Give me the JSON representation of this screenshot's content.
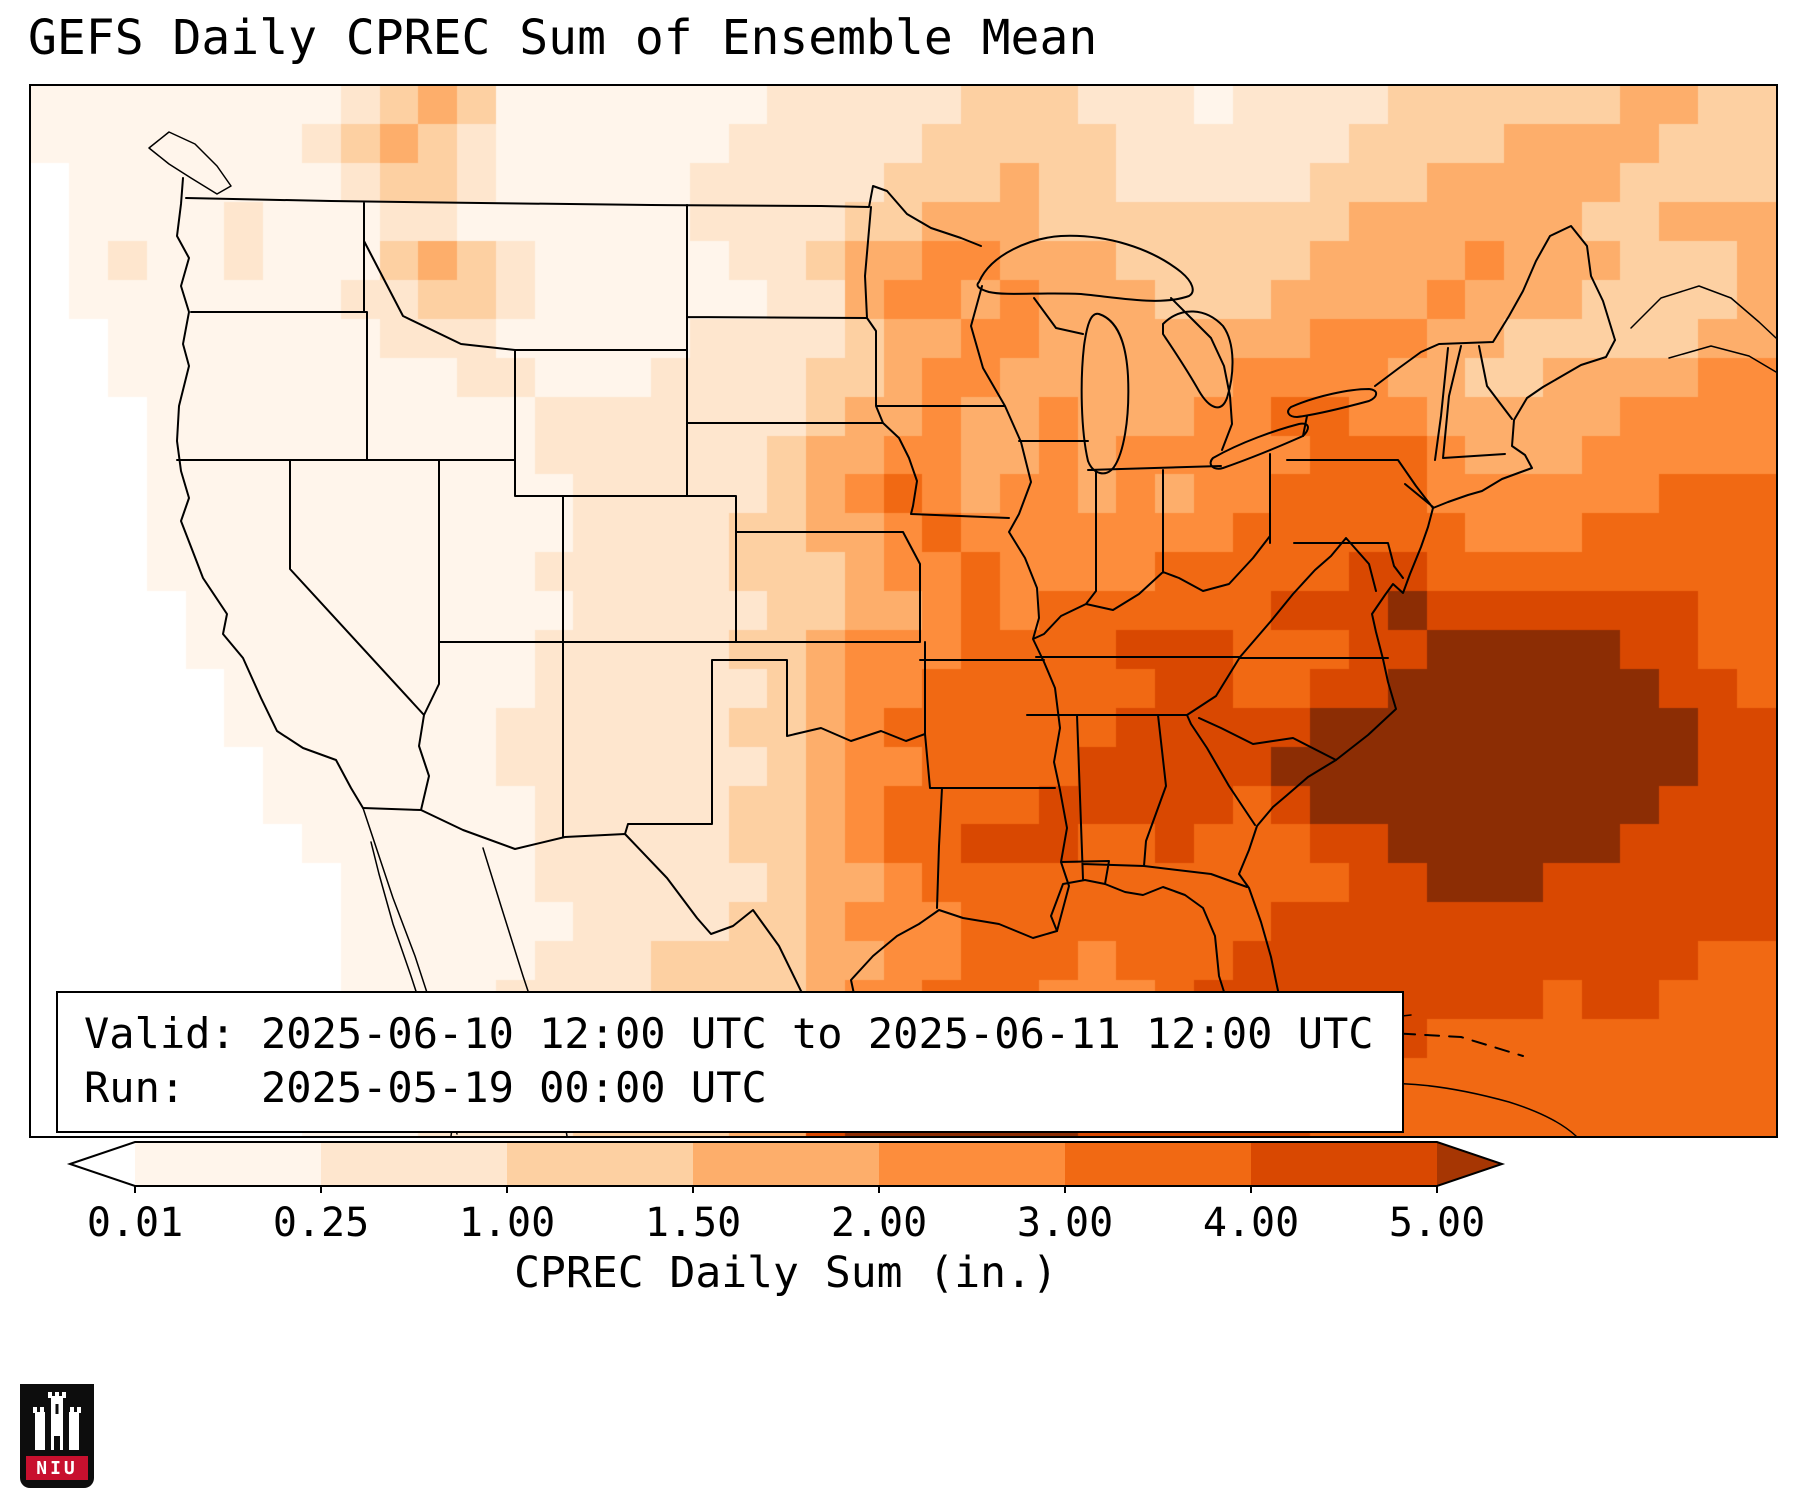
{
  "title": "GEFS Daily CPREC Sum of Ensemble Mean",
  "info_box": {
    "line1": "Valid: 2025-06-10 12:00 UTC to 2025-06-11 12:00 UTC",
    "line2": "Run:   2025-05-19 00:00 UTC"
  },
  "colorbar": {
    "label": "CPREC Daily Sum (in.)",
    "ticks": [
      "0.01",
      "0.25",
      "1.00",
      "1.50",
      "2.00",
      "3.00",
      "4.00",
      "5.00"
    ],
    "segment_colors": [
      "#fff5eb",
      "#fee6ce",
      "#fdd0a2",
      "#fdae6b",
      "#fd8d3c",
      "#f16913",
      "#d94801"
    ],
    "under_color": "#ffffff",
    "over_color": "#a63603",
    "outline_color": "#000000"
  },
  "logo": {
    "text": "NIU",
    "background": "#0d0d0d",
    "banner_color": "#c8102e"
  },
  "chart_data": {
    "type": "heatmap",
    "title": "GEFS Daily CPREC Sum of Ensemble Mean",
    "variable": "CPREC Daily Sum",
    "units": "in.",
    "valid": "2025-06-10 12:00 UTC to 2025-06-11 12:00 UTC",
    "run": "2025-05-19 00:00 UTC",
    "legend_position": "bottom",
    "levels": [
      0.01,
      0.25,
      1.0,
      1.5,
      2.0,
      3.0,
      4.0,
      5.0
    ],
    "level_colors": [
      "#ffffff",
      "#fff5eb",
      "#fee6ce",
      "#fdd0a2",
      "#fdae6b",
      "#fd8d3c",
      "#f16913",
      "#d94801",
      "#8c2d04"
    ],
    "grid_encoding": "each character is a color-level index 0-8; index i covers precipitation between levels[i-1] and levels[i]; 0 = below 0.01 in., 8 = above 5.00 in.",
    "grid_rows": 27,
    "grid_cols": 45,
    "grid": [
      "111111112343111111122222333222122223333334433",
      "111111123432111111222223333322222233334444333",
      "011111112332111112222233343322222333444443333",
      "011112111221111112222334443333333344444433444",
      "012112111343211111223445544433333444454443334",
      "011111112233211111122455454443334444544433334",
      "001111111222111112222344554444444555443333344",
      "001111111112211122223345544444455554433444455",
      "000111111111122222223445445444556655444445555",
      "000111111111122222234455445455555666544455555",
      "000111111111112222234565455454556666555555666",
      "000111111111112222334456555555566666655566666",
      "000111111111122222333455655556666677666666666",
      "000011111111112222233445656666667778777777766",
      "000011111111122222334555666677766677888887766",
      "000001111111122222234556666667766778888888776",
      "000001111111222222334566666677777888888888877",
      "000000111111222222234556666777778888888888877",
      "000000111111122222334566667777767888888888777",
      "000000011111122222334566777667666778888887777",
      "000000001111122222234456666666666677888777777",
      "000000001111112222334555666666667777777777777",
      "000000001111122233334455666566677777777777766",
      "000000001111222233334556665556777777777677666",
      "000000001112222233344567776667777777666666666",
      "000000011112222333447888887777666776666666666",
      "000000011122223333447888888777777666666666666"
    ]
  }
}
